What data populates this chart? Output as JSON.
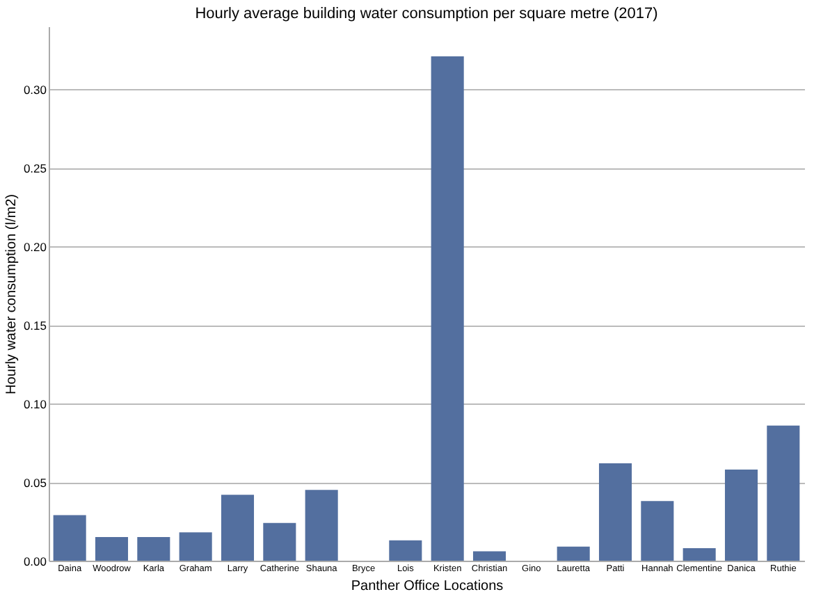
{
  "chart_data": {
    "type": "bar",
    "title": "Hourly average building water consumption per square metre (2017)",
    "xlabel": "Panther Office Locations",
    "ylabel": "Hourly water consumption (l/m2)",
    "categories": [
      "Daina",
      "Woodrow",
      "Karla",
      "Graham",
      "Larry",
      "Catherine",
      "Shauna",
      "Bryce",
      "Lois",
      "Kristen",
      "Christian",
      "Gino",
      "Lauretta",
      "Patti",
      "Hannah",
      "Clementine",
      "Danica",
      "Ruthie"
    ],
    "values": [
      0.029,
      0.015,
      0.015,
      0.018,
      0.042,
      0.024,
      0.045,
      0,
      0.013,
      0.321,
      0.006,
      0,
      0.009,
      0.062,
      0.038,
      0.008,
      0.058,
      0.086
    ],
    "color": "#536f9f",
    "ylim": [
      0,
      0.34
    ],
    "yticks": [
      {
        "value": 0,
        "label": "0.00"
      },
      {
        "value": 0.05,
        "label": "0.05"
      },
      {
        "value": 0.1,
        "label": "0.10"
      },
      {
        "value": 0.15,
        "label": "0.15"
      },
      {
        "value": 0.2,
        "label": "0.20"
      },
      {
        "value": 0.25,
        "label": "0.25"
      },
      {
        "value": 0.3,
        "label": "0.30"
      }
    ],
    "grid": "y"
  }
}
